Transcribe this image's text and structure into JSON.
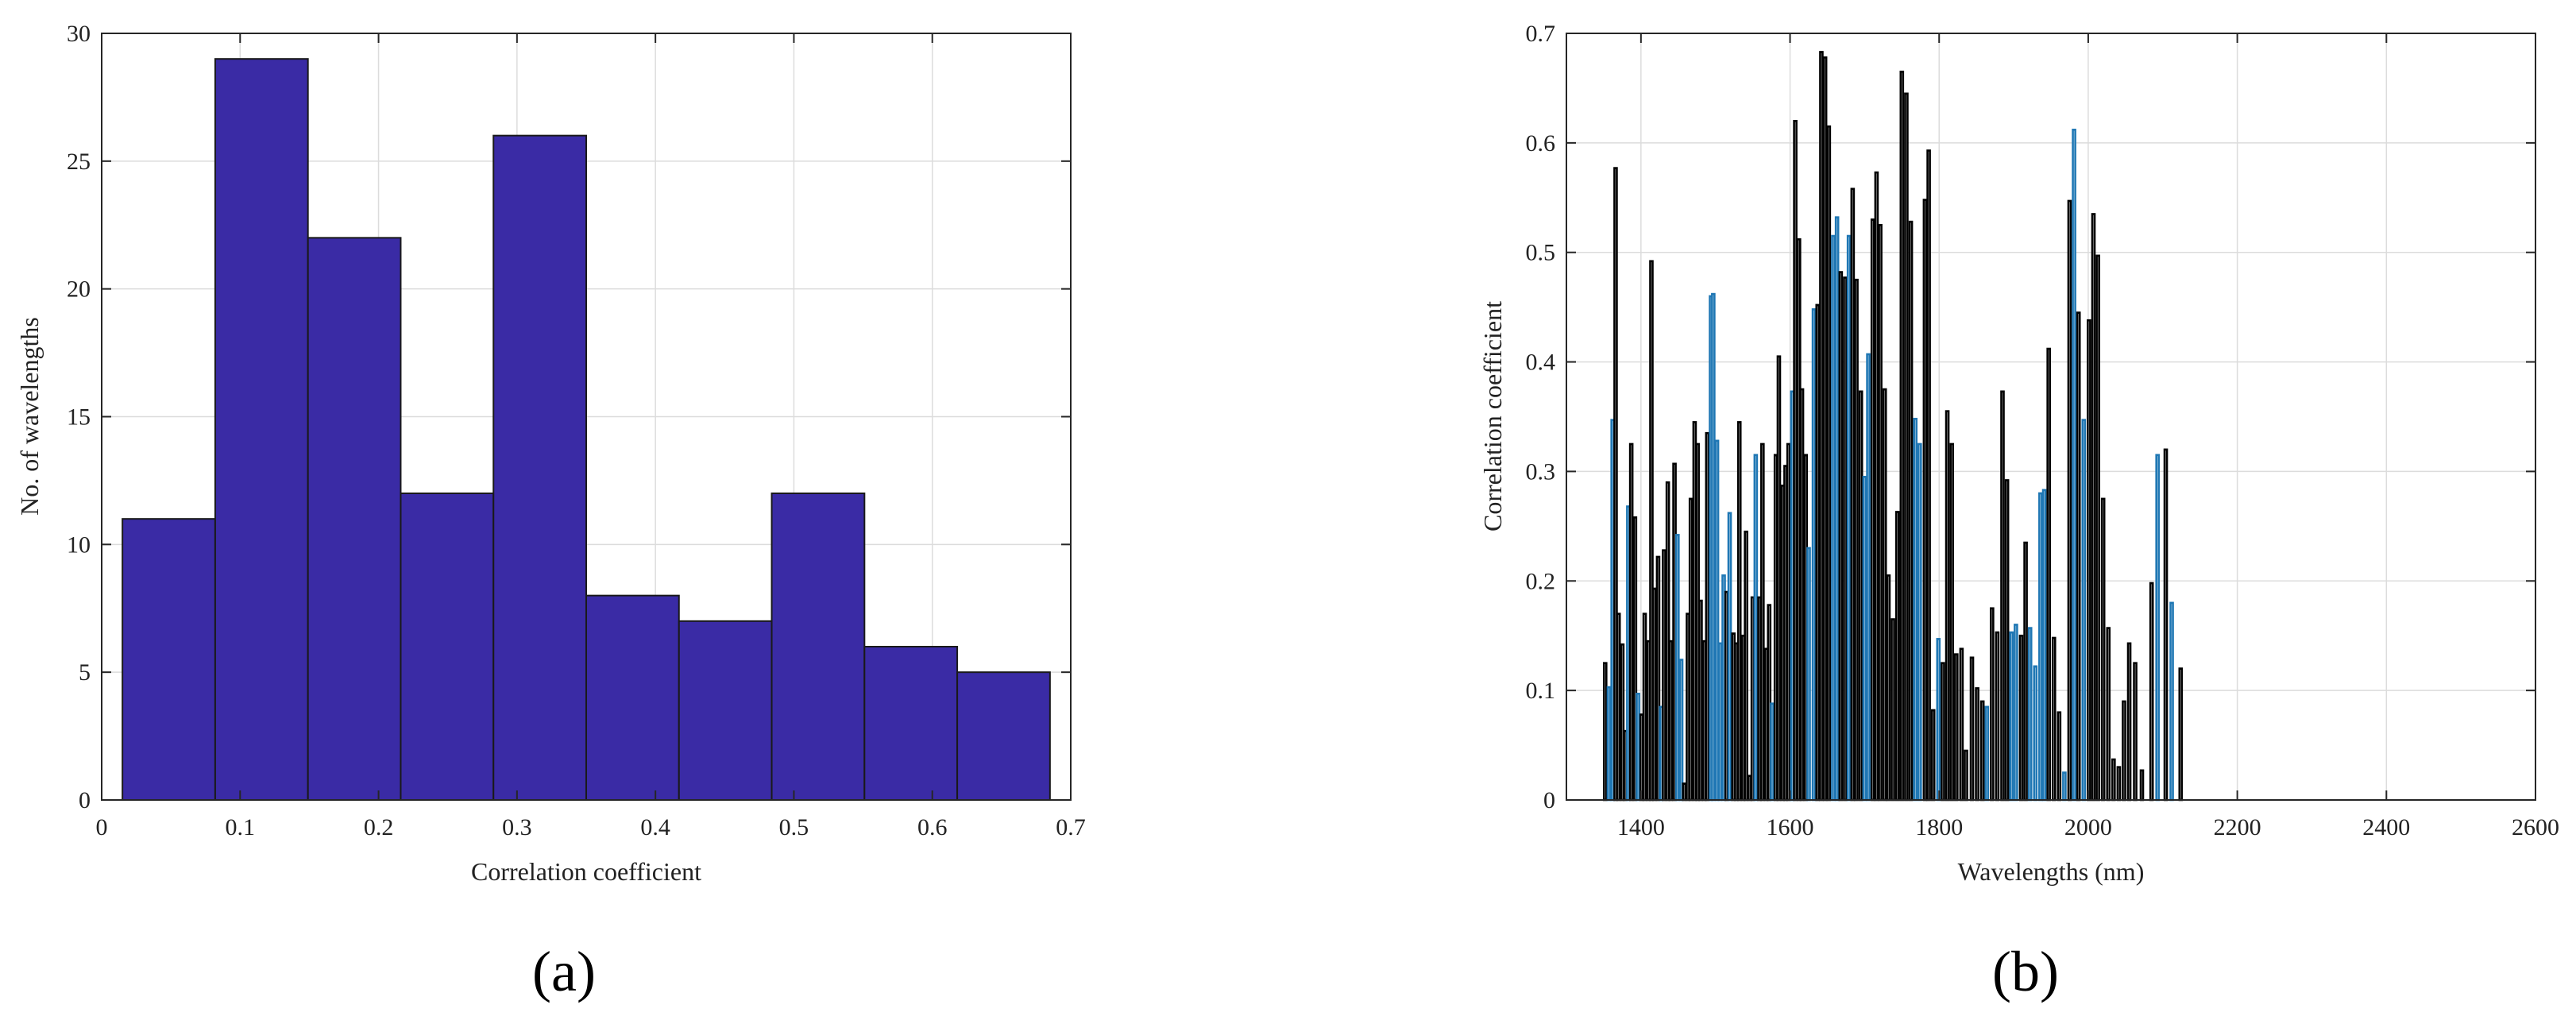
{
  "chart_data": [
    {
      "type": "bar",
      "panel_label": "(a)",
      "xlabel": "Correlation coefficient",
      "ylabel": "No. of wavelengths",
      "xlim": [
        0,
        0.7
      ],
      "ylim": [
        0,
        30
      ],
      "xticks": [
        0,
        0.1,
        0.2,
        0.3,
        0.4,
        0.5,
        0.6,
        0.7
      ],
      "yticks": [
        0,
        5,
        10,
        15,
        20,
        25,
        30
      ],
      "grid": true,
      "bar_color": "#3a2ba5",
      "bins": [
        {
          "x0": 0.015,
          "x1": 0.082,
          "count": 11
        },
        {
          "x0": 0.082,
          "x1": 0.149,
          "count": 29
        },
        {
          "x0": 0.149,
          "x1": 0.216,
          "count": 22
        },
        {
          "x0": 0.216,
          "x1": 0.283,
          "count": 12
        },
        {
          "x0": 0.283,
          "x1": 0.35,
          "count": 26
        },
        {
          "x0": 0.35,
          "x1": 0.417,
          "count": 8
        },
        {
          "x0": 0.417,
          "x1": 0.484,
          "count": 7
        },
        {
          "x0": 0.484,
          "x1": 0.551,
          "count": 12
        },
        {
          "x0": 0.551,
          "x1": 0.618,
          "count": 6
        },
        {
          "x0": 0.618,
          "x1": 0.685,
          "count": 5
        }
      ]
    },
    {
      "type": "bar",
      "panel_label": "(b)",
      "xlabel": "Wavelengths (nm)",
      "ylabel": "Correlation coefficient",
      "xlim": [
        1300,
        2600
      ],
      "ylim": [
        0,
        0.7
      ],
      "xticks": [
        1400,
        1600,
        1800,
        2000,
        2200,
        2400,
        2600
      ],
      "yticks": [
        0,
        0.1,
        0.2,
        0.3,
        0.4,
        0.5,
        0.6,
        0.7
      ],
      "grid": true,
      "bar_edge_colors": {
        "black": "#000000",
        "blue": "#1f77b4"
      },
      "bars": [
        {
          "x": 1352,
          "y": 0.125,
          "c": "black"
        },
        {
          "x": 1357,
          "y": 0.103,
          "c": "blue"
        },
        {
          "x": 1362,
          "y": 0.347,
          "c": "blue"
        },
        {
          "x": 1366,
          "y": 0.577,
          "c": "black"
        },
        {
          "x": 1370,
          "y": 0.17,
          "c": "black"
        },
        {
          "x": 1375,
          "y": 0.142,
          "c": "black"
        },
        {
          "x": 1379,
          "y": 0.063,
          "c": "black"
        },
        {
          "x": 1383,
          "y": 0.268,
          "c": "blue"
        },
        {
          "x": 1387,
          "y": 0.325,
          "c": "black"
        },
        {
          "x": 1392,
          "y": 0.258,
          "c": "black"
        },
        {
          "x": 1396,
          "y": 0.097,
          "c": "blue"
        },
        {
          "x": 1401,
          "y": 0.078,
          "c": "black"
        },
        {
          "x": 1405,
          "y": 0.17,
          "c": "black"
        },
        {
          "x": 1410,
          "y": 0.145,
          "c": "black"
        },
        {
          "x": 1414,
          "y": 0.492,
          "c": "black"
        },
        {
          "x": 1418,
          "y": 0.193,
          "c": "black"
        },
        {
          "x": 1423,
          "y": 0.222,
          "c": "black"
        },
        {
          "x": 1427,
          "y": 0.085,
          "c": "blue"
        },
        {
          "x": 1431,
          "y": 0.228,
          "c": "black"
        },
        {
          "x": 1436,
          "y": 0.29,
          "c": "black"
        },
        {
          "x": 1440,
          "y": 0.145,
          "c": "black"
        },
        {
          "x": 1445,
          "y": 0.307,
          "c": "black"
        },
        {
          "x": 1449,
          "y": 0.242,
          "c": "blue"
        },
        {
          "x": 1454,
          "y": 0.128,
          "c": "blue"
        },
        {
          "x": 1458,
          "y": 0.015,
          "c": "black"
        },
        {
          "x": 1463,
          "y": 0.17,
          "c": "black"
        },
        {
          "x": 1467,
          "y": 0.275,
          "c": "black"
        },
        {
          "x": 1472,
          "y": 0.345,
          "c": "black"
        },
        {
          "x": 1476,
          "y": 0.325,
          "c": "black"
        },
        {
          "x": 1480,
          "y": 0.182,
          "c": "black"
        },
        {
          "x": 1485,
          "y": 0.145,
          "c": "black"
        },
        {
          "x": 1489,
          "y": 0.335,
          "c": "black"
        },
        {
          "x": 1494,
          "y": 0.46,
          "c": "blue"
        },
        {
          "x": 1497,
          "y": 0.462,
          "c": "blue"
        },
        {
          "x": 1502,
          "y": 0.328,
          "c": "blue"
        },
        {
          "x": 1506,
          "y": 0.143,
          "c": "blue"
        },
        {
          "x": 1511,
          "y": 0.205,
          "c": "blue"
        },
        {
          "x": 1515,
          "y": 0.19,
          "c": "black"
        },
        {
          "x": 1519,
          "y": 0.262,
          "c": "blue"
        },
        {
          "x": 1524,
          "y": 0.152,
          "c": "black"
        },
        {
          "x": 1528,
          "y": 0.143,
          "c": "black"
        },
        {
          "x": 1532,
          "y": 0.345,
          "c": "black"
        },
        {
          "x": 1537,
          "y": 0.15,
          "c": "black"
        },
        {
          "x": 1541,
          "y": 0.245,
          "c": "black"
        },
        {
          "x": 1546,
          "y": 0.022,
          "c": "black"
        },
        {
          "x": 1550,
          "y": 0.185,
          "c": "black"
        },
        {
          "x": 1554,
          "y": 0.315,
          "c": "blue"
        },
        {
          "x": 1559,
          "y": 0.185,
          "c": "black"
        },
        {
          "x": 1563,
          "y": 0.325,
          "c": "black"
        },
        {
          "x": 1568,
          "y": 0.138,
          "c": "black"
        },
        {
          "x": 1572,
          "y": 0.178,
          "c": "black"
        },
        {
          "x": 1576,
          "y": 0.088,
          "c": "blue"
        },
        {
          "x": 1581,
          "y": 0.315,
          "c": "black"
        },
        {
          "x": 1585,
          "y": 0.405,
          "c": "black"
        },
        {
          "x": 1590,
          "y": 0.287,
          "c": "black"
        },
        {
          "x": 1594,
          "y": 0.305,
          "c": "black"
        },
        {
          "x": 1598,
          "y": 0.325,
          "c": "black"
        },
        {
          "x": 1603,
          "y": 0.373,
          "c": "blue"
        },
        {
          "x": 1607,
          "y": 0.62,
          "c": "black"
        },
        {
          "x": 1612,
          "y": 0.512,
          "c": "black"
        },
        {
          "x": 1616,
          "y": 0.375,
          "c": "black"
        },
        {
          "x": 1621,
          "y": 0.315,
          "c": "black"
        },
        {
          "x": 1625,
          "y": 0.23,
          "c": "blue"
        },
        {
          "x": 1632,
          "y": 0.448,
          "c": "blue"
        },
        {
          "x": 1637,
          "y": 0.452,
          "c": "black"
        },
        {
          "x": 1642,
          "y": 0.683,
          "c": "black"
        },
        {
          "x": 1647,
          "y": 0.678,
          "c": "black"
        },
        {
          "x": 1652,
          "y": 0.615,
          "c": "black"
        },
        {
          "x": 1658,
          "y": 0.515,
          "c": "blue"
        },
        {
          "x": 1663,
          "y": 0.532,
          "c": "blue"
        },
        {
          "x": 1668,
          "y": 0.482,
          "c": "black"
        },
        {
          "x": 1674,
          "y": 0.477,
          "c": "black"
        },
        {
          "x": 1679,
          "y": 0.515,
          "c": "blue"
        },
        {
          "x": 1684,
          "y": 0.558,
          "c": "black"
        },
        {
          "x": 1689,
          "y": 0.475,
          "c": "black"
        },
        {
          "x": 1695,
          "y": 0.373,
          "c": "black"
        },
        {
          "x": 1700,
          "y": 0.295,
          "c": "blue"
        },
        {
          "x": 1705,
          "y": 0.407,
          "c": "blue"
        },
        {
          "x": 1711,
          "y": 0.53,
          "c": "black"
        },
        {
          "x": 1716,
          "y": 0.573,
          "c": "black"
        },
        {
          "x": 1721,
          "y": 0.525,
          "c": "black"
        },
        {
          "x": 1727,
          "y": 0.375,
          "c": "black"
        },
        {
          "x": 1732,
          "y": 0.205,
          "c": "black"
        },
        {
          "x": 1738,
          "y": 0.165,
          "c": "black"
        },
        {
          "x": 1744,
          "y": 0.263,
          "c": "black"
        },
        {
          "x": 1750,
          "y": 0.665,
          "c": "black"
        },
        {
          "x": 1756,
          "y": 0.645,
          "c": "black"
        },
        {
          "x": 1762,
          "y": 0.528,
          "c": "black"
        },
        {
          "x": 1768,
          "y": 0.348,
          "c": "blue"
        },
        {
          "x": 1774,
          "y": 0.325,
          "c": "blue"
        },
        {
          "x": 1781,
          "y": 0.548,
          "c": "black"
        },
        {
          "x": 1786,
          "y": 0.593,
          "c": "black"
        },
        {
          "x": 1792,
          "y": 0.082,
          "c": "black"
        },
        {
          "x": 1799,
          "y": 0.147,
          "c": "blue"
        },
        {
          "x": 1805,
          "y": 0.125,
          "c": "black"
        },
        {
          "x": 1811,
          "y": 0.355,
          "c": "black"
        },
        {
          "x": 1817,
          "y": 0.325,
          "c": "black"
        },
        {
          "x": 1823,
          "y": 0.133,
          "c": "black"
        },
        {
          "x": 1830,
          "y": 0.138,
          "c": "black"
        },
        {
          "x": 1836,
          "y": 0.045,
          "c": "black"
        },
        {
          "x": 1844,
          "y": 0.13,
          "c": "black"
        },
        {
          "x": 1851,
          "y": 0.102,
          "c": "black"
        },
        {
          "x": 1858,
          "y": 0.09,
          "c": "black"
        },
        {
          "x": 1864,
          "y": 0.085,
          "c": "blue"
        },
        {
          "x": 1871,
          "y": 0.175,
          "c": "black"
        },
        {
          "x": 1878,
          "y": 0.153,
          "c": "black"
        },
        {
          "x": 1885,
          "y": 0.373,
          "c": "black"
        },
        {
          "x": 1891,
          "y": 0.292,
          "c": "black"
        },
        {
          "x": 1897,
          "y": 0.153,
          "c": "blue"
        },
        {
          "x": 1903,
          "y": 0.16,
          "c": "blue"
        },
        {
          "x": 1910,
          "y": 0.15,
          "c": "black"
        },
        {
          "x": 1916,
          "y": 0.235,
          "c": "black"
        },
        {
          "x": 1922,
          "y": 0.157,
          "c": "blue"
        },
        {
          "x": 1929,
          "y": 0.122,
          "c": "blue"
        },
        {
          "x": 1936,
          "y": 0.28,
          "c": "blue"
        },
        {
          "x": 1941,
          "y": 0.283,
          "c": "blue"
        },
        {
          "x": 1947,
          "y": 0.412,
          "c": "black"
        },
        {
          "x": 1954,
          "y": 0.148,
          "c": "black"
        },
        {
          "x": 1961,
          "y": 0.08,
          "c": "black"
        },
        {
          "x": 1968,
          "y": 0.025,
          "c": "blue"
        },
        {
          "x": 1975,
          "y": 0.547,
          "c": "black"
        },
        {
          "x": 1981,
          "y": 0.612,
          "c": "blue"
        },
        {
          "x": 1987,
          "y": 0.445,
          "c": "black"
        },
        {
          "x": 1994,
          "y": 0.347,
          "c": "blue"
        },
        {
          "x": 2001,
          "y": 0.438,
          "c": "black"
        },
        {
          "x": 2007,
          "y": 0.535,
          "c": "black"
        },
        {
          "x": 2013,
          "y": 0.497,
          "c": "black"
        },
        {
          "x": 2020,
          "y": 0.275,
          "c": "black"
        },
        {
          "x": 2027,
          "y": 0.157,
          "c": "black"
        },
        {
          "x": 2034,
          "y": 0.037,
          "c": "black"
        },
        {
          "x": 2041,
          "y": 0.03,
          "c": "black"
        },
        {
          "x": 2048,
          "y": 0.09,
          "c": "black"
        },
        {
          "x": 2055,
          "y": 0.143,
          "c": "black"
        },
        {
          "x": 2063,
          "y": 0.125,
          "c": "black"
        },
        {
          "x": 2072,
          "y": 0.027,
          "c": "black"
        },
        {
          "x": 2085,
          "y": 0.198,
          "c": "black"
        },
        {
          "x": 2093,
          "y": 0.315,
          "c": "blue"
        },
        {
          "x": 2104,
          "y": 0.32,
          "c": "black"
        },
        {
          "x": 2112,
          "y": 0.18,
          "c": "blue"
        },
        {
          "x": 2124,
          "y": 0.12,
          "c": "black"
        }
      ]
    }
  ]
}
